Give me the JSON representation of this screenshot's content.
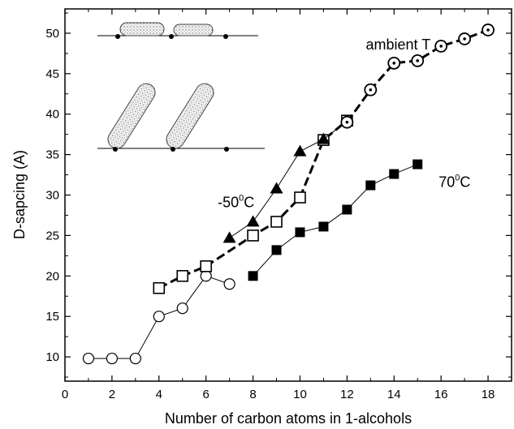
{
  "chart_data": {
    "type": "scatter",
    "xlabel": "Number of carbon atoms in 1-alcohols",
    "ylabel": "D-sapcing (A)",
    "xlim": [
      0,
      19
    ],
    "ylim": [
      7,
      53
    ],
    "xticks": [
      "0",
      "2",
      "4",
      "6",
      "8",
      "10",
      "12",
      "14",
      "16",
      "18"
    ],
    "yticks": [
      "10",
      "15",
      "20",
      "25",
      "30",
      "35",
      "40",
      "45",
      "50"
    ],
    "grid": false,
    "series": [
      {
        "marker": "circle-open",
        "line": "thin-solid",
        "x": [
          1,
          2,
          3,
          4,
          5,
          6,
          7
        ],
        "y": [
          9.8,
          9.8,
          9.8,
          15.0,
          16.0,
          20.0,
          19.0
        ]
      },
      {
        "marker": "square-open",
        "line": "thick-dashed",
        "x": [
          4,
          5,
          6,
          8,
          9,
          10,
          11,
          12
        ],
        "y": [
          18.5,
          20.0,
          21.2,
          25.0,
          26.7,
          29.7,
          36.8,
          39.2
        ]
      },
      {
        "marker": "triangle-filled",
        "line": "thin-solid",
        "x": [
          7,
          8,
          9,
          10,
          11,
          12
        ],
        "y": [
          24.7,
          26.7,
          30.8,
          35.4,
          36.9,
          39.1
        ]
      },
      {
        "marker": "square-filled",
        "line": "thin-solid",
        "x": [
          8,
          9,
          10,
          11,
          12,
          13,
          14,
          15
        ],
        "y": [
          20.0,
          23.2,
          25.4,
          26.1,
          28.2,
          31.2,
          32.6,
          33.8
        ]
      },
      {
        "marker": "circle-dot",
        "line": "thick-dashed",
        "x": [
          12,
          13,
          14,
          15,
          16,
          17,
          18
        ],
        "y": [
          39.0,
          43.0,
          46.3,
          46.6,
          48.4,
          49.3,
          50.4
        ]
      }
    ],
    "annotations": [
      {
        "text": "ambient T",
        "sup": "",
        "tail": "",
        "x": 12.8,
        "y": 48.0
      },
      {
        "text": "-50",
        "sup": "0",
        "tail": "C",
        "x": 6.5,
        "y": 28.5
      },
      {
        "text": "70",
        "sup": "0",
        "tail": "C",
        "x": 15.9,
        "y": 31.0
      }
    ]
  }
}
